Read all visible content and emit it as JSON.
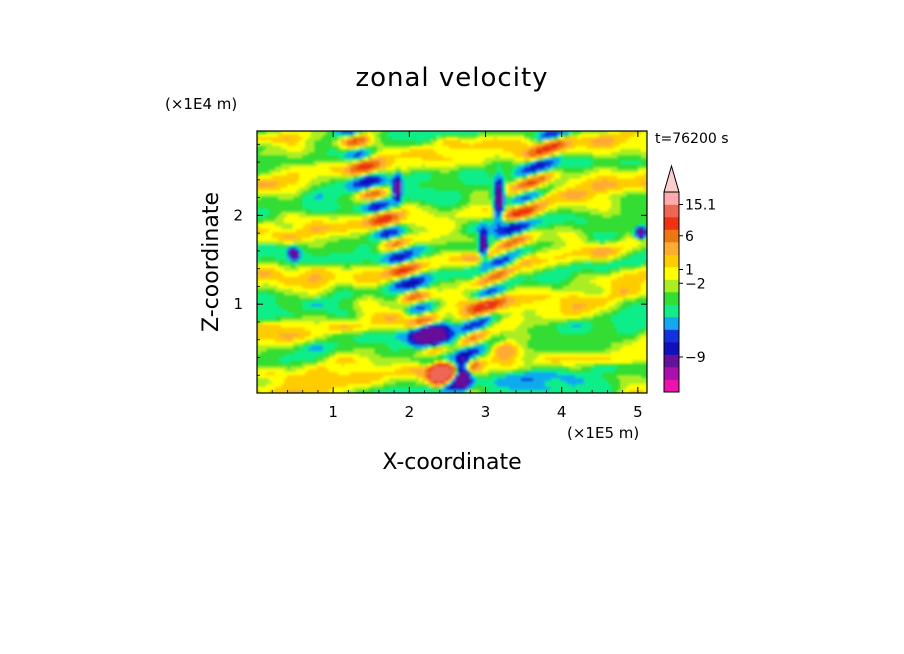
{
  "chart_data": {
    "type": "heatmap",
    "title": "zonal velocity",
    "xlabel": "X-coordinate",
    "ylabel": "Z-coordinate",
    "x_unit": "(×1E5 m)",
    "y_unit": "(×1E4 m)",
    "time_label": "t=76200 s",
    "xlim": [
      0,
      5.12
    ],
    "ylim": [
      0,
      2.95
    ],
    "x_ticks": [
      1,
      2,
      3,
      4,
      5
    ],
    "y_ticks": [
      1,
      2
    ],
    "grid": false,
    "legend": "right",
    "colorbar": {
      "levels": [
        {
          "color": "#ee11aa"
        },
        {
          "color": "#aa11aa"
        },
        {
          "color": "#661199"
        },
        {
          "color": "#1111bb"
        },
        {
          "color": "#1133dd"
        },
        {
          "color": "#11aaee"
        },
        {
          "color": "#11ee88"
        },
        {
          "color": "#33dd33"
        },
        {
          "color": "#aaee22"
        },
        {
          "color": "#ffff00"
        },
        {
          "color": "#ffcc00"
        },
        {
          "color": "#ffaa33"
        },
        {
          "color": "#ee7711"
        },
        {
          "color": "#ee3311"
        },
        {
          "color": "#ee6655"
        },
        {
          "color": "#ffaaaa"
        },
        {
          "color": "#ffcccc"
        }
      ],
      "tick_labels": [
        {
          "level": 15,
          "text": "15.1"
        },
        {
          "level": 12.5,
          "text": "6"
        },
        {
          "level": 9.8,
          "text": "1"
        },
        {
          "level": 8.7,
          "text": "−2"
        },
        {
          "level": 2.8,
          "text": "−9"
        }
      ]
    }
  }
}
